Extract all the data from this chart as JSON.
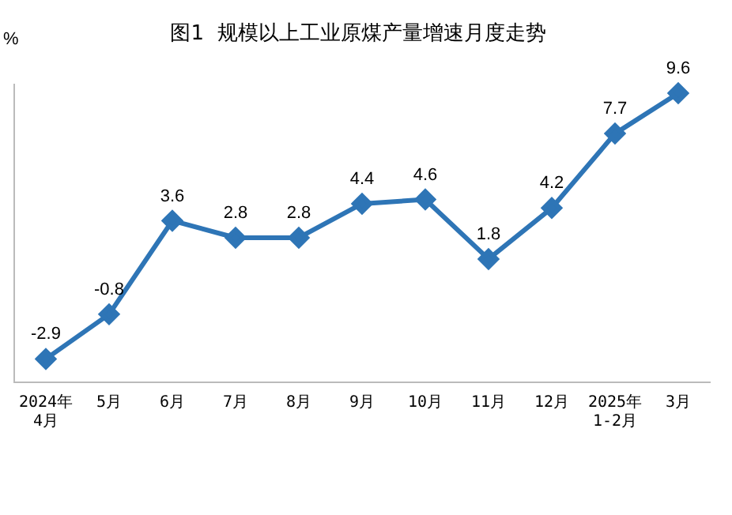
{
  "chart_data": {
    "type": "line",
    "title": "图1  规模以上工业原煤产量增速月度走势",
    "ylabel": "%",
    "categories": [
      "2024年\n4月",
      "5月",
      "6月",
      "7月",
      "8月",
      "9月",
      "10月",
      "11月",
      "12月",
      "2025年\n1-2月",
      "3月"
    ],
    "series": [
      {
        "color": "#2e75b6",
        "values": [
          -2.9,
          -0.8,
          3.6,
          2.8,
          2.8,
          4.4,
          4.6,
          1.8,
          4.2,
          7.7,
          9.6
        ]
      }
    ],
    "tick_labels": "x",
    "marker": "diamond",
    "line_style": "solid",
    "data_labels": true,
    "grid": false,
    "legend": false
  }
}
